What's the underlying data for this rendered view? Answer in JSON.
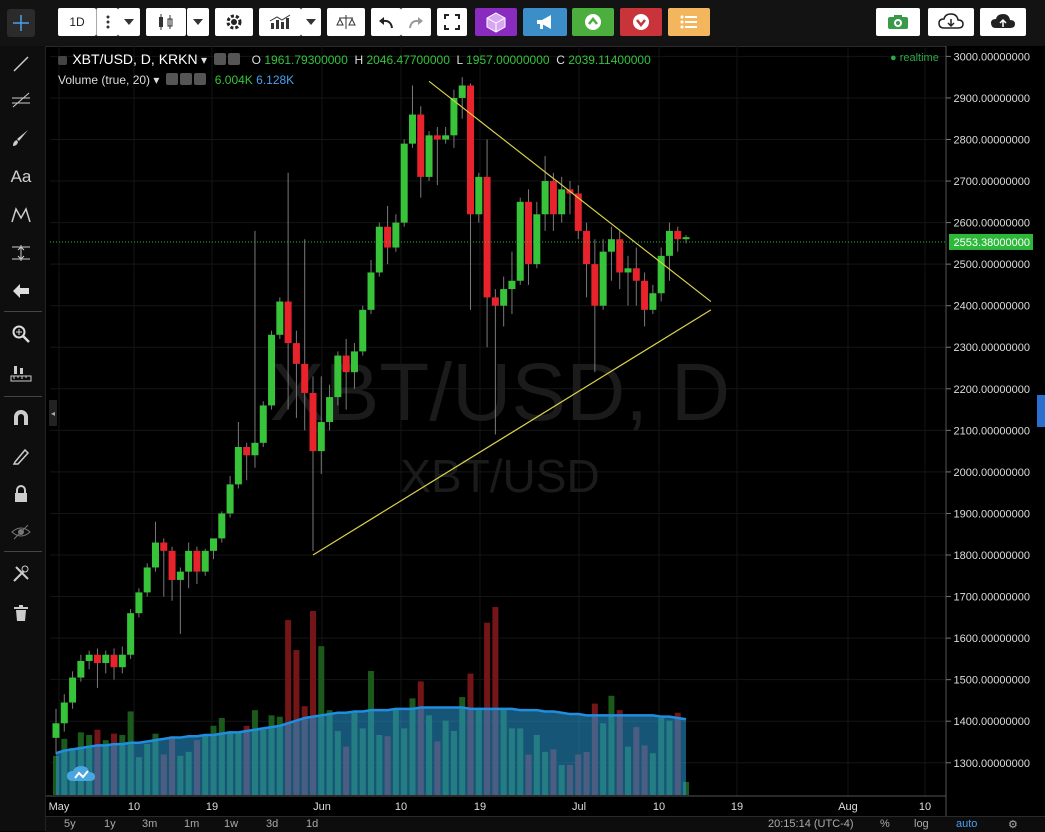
{
  "toolbar": {
    "interval": "1D",
    "icons": [
      "more-icon",
      "chevron-down-icon",
      "candles-icon",
      "chevron-down-icon",
      "gear-icon",
      "indicators-icon",
      "chevron-down-icon",
      "compare-icon",
      "undo-icon",
      "redo-icon",
      "fullscreen-icon",
      "cube-icon",
      "megaphone-icon",
      "up-arrow-icon",
      "down-arrow-icon",
      "list-icon",
      "camera-icon",
      "cloud-download-icon",
      "cloud-upload-icon"
    ],
    "colors": {
      "cube": "#8a2bc0",
      "megaphone": "#3b8ec8",
      "up": "#4cae3d",
      "down": "#c9343b",
      "list": "#f4b65c"
    }
  },
  "legend": {
    "symbol": "XBT/USD, D, KRKN",
    "o_label": "O",
    "o_value": "1961.79300000",
    "h_label": "H",
    "h_value": "2046.47700000",
    "l_label": "L",
    "l_value": "1957.00000000",
    "c_label": "C",
    "c_value": "2039.11400000",
    "volume_label": "Volume (true, 20)",
    "volume_value": "6.004K",
    "volume_ma": "6.128K",
    "realtime": "realtime"
  },
  "watermark": {
    "big": "XBT/USD, D",
    "small": "XBT/USD"
  },
  "bottom": {
    "ranges": [
      "5y",
      "1y",
      "3m",
      "1m",
      "1w",
      "3d",
      "1d"
    ],
    "time": "20:15:14 (UTC-4)",
    "percent": "%",
    "log": "log",
    "auto": "auto"
  },
  "chart_data": {
    "type": "candlestick",
    "ylim": [
      1220,
      3025
    ],
    "y_ticks": [
      "3000.00000000",
      "2900.00000000",
      "2800.00000000",
      "2700.00000000",
      "2600.00000000",
      "2500.00000000",
      "2400.00000000",
      "2300.00000000",
      "2200.00000000",
      "2100.00000000",
      "2000.00000000",
      "1900.00000000",
      "1800.00000000",
      "1700.00000000",
      "1600.00000000",
      "1500.00000000",
      "1400.00000000",
      "1300.00000000"
    ],
    "last_price": "2553.38000000",
    "x_labels": [
      "May",
      "10",
      "19",
      "Jun",
      "10",
      "19",
      "Jul",
      "10",
      "19",
      "Aug",
      "10"
    ],
    "colors": {
      "up": "#38c43a",
      "down": "#e8232b",
      "line": "#d8d04a",
      "volume_ma": "#1f8de0",
      "last": "#2db83a"
    },
    "candles": [
      [
        1360,
        1395,
        1320,
        1430
      ],
      [
        1395,
        1445,
        1375,
        1465
      ],
      [
        1445,
        1505,
        1430,
        1520
      ],
      [
        1505,
        1545,
        1495,
        1560
      ],
      [
        1545,
        1560,
        1525,
        1570
      ],
      [
        1560,
        1540,
        1480,
        1575
      ],
      [
        1540,
        1560,
        1515,
        1570
      ],
      [
        1560,
        1530,
        1500,
        1575
      ],
      [
        1530,
        1560,
        1515,
        1580
      ],
      [
        1560,
        1660,
        1550,
        1670
      ],
      [
        1660,
        1710,
        1650,
        1720
      ],
      [
        1710,
        1770,
        1700,
        1780
      ],
      [
        1770,
        1830,
        1760,
        1880
      ],
      [
        1830,
        1810,
        1700,
        1840
      ],
      [
        1810,
        1740,
        1690,
        1820
      ],
      [
        1740,
        1760,
        1610,
        1770
      ],
      [
        1760,
        1810,
        1720,
        1830
      ],
      [
        1810,
        1760,
        1730,
        1820
      ],
      [
        1760,
        1810,
        1750,
        1815
      ],
      [
        1810,
        1840,
        1790,
        1830
      ],
      [
        1840,
        1900,
        1830,
        1905
      ],
      [
        1900,
        1970,
        1890,
        1990
      ],
      [
        1970,
        2060,
        1960,
        2120
      ],
      [
        2060,
        2040,
        1980,
        2070
      ],
      [
        2040,
        2070,
        2010,
        2580
      ],
      [
        2070,
        2160,
        2060,
        2170
      ],
      [
        2160,
        2330,
        2150,
        2340
      ],
      [
        2330,
        2410,
        2320,
        2420
      ],
      [
        2410,
        2310,
        2150,
        2720
      ],
      [
        2310,
        2260,
        2130,
        2340
      ],
      [
        2260,
        2190,
        2100,
        2560
      ],
      [
        2190,
        2050,
        1810,
        2230
      ],
      [
        2050,
        2120,
        1995,
        2230
      ],
      [
        2120,
        2180,
        2100,
        2210
      ],
      [
        2180,
        2280,
        2160,
        2290
      ],
      [
        2280,
        2240,
        2150,
        2320
      ],
      [
        2240,
        2290,
        2200,
        2310
      ],
      [
        2290,
        2390,
        2280,
        2400
      ],
      [
        2390,
        2480,
        2380,
        2510
      ],
      [
        2480,
        2590,
        2470,
        2600
      ],
      [
        2590,
        2540,
        2500,
        2640
      ],
      [
        2540,
        2600,
        2530,
        2620
      ],
      [
        2600,
        2790,
        2590,
        2800
      ],
      [
        2790,
        2860,
        2780,
        2930
      ],
      [
        2860,
        2710,
        2660,
        2880
      ],
      [
        2710,
        2810,
        2700,
        2820
      ],
      [
        2810,
        2800,
        2690,
        2830
      ],
      [
        2800,
        2810,
        2790,
        2830
      ],
      [
        2810,
        2900,
        2780,
        2920
      ],
      [
        2900,
        2930,
        2850,
        2950
      ],
      [
        2930,
        2620,
        2390,
        2935
      ],
      [
        2620,
        2710,
        2600,
        2720
      ],
      [
        2710,
        2420,
        2300,
        2800
      ],
      [
        2420,
        2400,
        2090,
        2440
      ],
      [
        2400,
        2440,
        2350,
        2470
      ],
      [
        2440,
        2460,
        2380,
        2530
      ],
      [
        2460,
        2650,
        2450,
        2660
      ],
      [
        2650,
        2500,
        2450,
        2680
      ],
      [
        2500,
        2620,
        2490,
        2650
      ],
      [
        2620,
        2700,
        2580,
        2760
      ],
      [
        2700,
        2620,
        2580,
        2720
      ],
      [
        2620,
        2680,
        2600,
        2710
      ],
      [
        2680,
        2670,
        2620,
        2700
      ],
      [
        2670,
        2580,
        2560,
        2690
      ],
      [
        2580,
        2500,
        2420,
        2600
      ],
      [
        2500,
        2400,
        2240,
        2560
      ],
      [
        2400,
        2530,
        2390,
        2560
      ],
      [
        2530,
        2560,
        2460,
        2590
      ],
      [
        2560,
        2480,
        2440,
        2580
      ],
      [
        2480,
        2490,
        2400,
        2520
      ],
      [
        2490,
        2460,
        2400,
        2540
      ],
      [
        2460,
        2390,
        2350,
        2480
      ],
      [
        2390,
        2430,
        2380,
        2450
      ],
      [
        2430,
        2520,
        2410,
        2540
      ],
      [
        2520,
        2580,
        2460,
        2600
      ],
      [
        2580,
        2560,
        2530,
        2590
      ],
      [
        2560,
        2565,
        2550,
        2570
      ]
    ],
    "volume": [
      3.0,
      4.3,
      3.6,
      4.8,
      4.6,
      5.0,
      4.2,
      4.7,
      4.6,
      6.4,
      2.9,
      3.9,
      4.7,
      3.1,
      4.5,
      3.0,
      3.3,
      4.2,
      4.6,
      5.3,
      5.9,
      4.9,
      4.8,
      5.3,
      6.5,
      5.0,
      6.1,
      6.0,
      13.4,
      11.1,
      6.8,
      14.1,
      11.4,
      6.5,
      4.9,
      3.7,
      6.3,
      5.1,
      9.5,
      4.6,
      4.5,
      6.6,
      5.1,
      7.4,
      8.7,
      6.1,
      4.1,
      5.7,
      4.9,
      7.5,
      9.3,
      6.7,
      13.2,
      14.4,
      6.6,
      5.1,
      5.1,
      3.1,
      4.6,
      3.3,
      3.5,
      2.3,
      2.3,
      3.1,
      3.3,
      7.0,
      5.5,
      7.6,
      6.5,
      3.7,
      5.2,
      3.8,
      3.2,
      5.9,
      5.7,
      6.3,
      1.0
    ],
    "volume_ma": [
      3.2,
      3.4,
      3.5,
      3.6,
      3.7,
      3.8,
      3.8,
      3.9,
      3.9,
      4.0,
      4.0,
      4.1,
      4.2,
      4.3,
      4.4,
      4.4,
      4.5,
      4.5,
      4.6,
      4.6,
      4.7,
      4.8,
      4.8,
      4.9,
      5.0,
      5.1,
      5.2,
      5.3,
      5.5,
      5.7,
      5.9,
      6.0,
      6.1,
      6.2,
      6.3,
      6.3,
      6.4,
      6.4,
      6.5,
      6.5,
      6.5,
      6.6,
      6.6,
      6.6,
      6.7,
      6.7,
      6.7,
      6.7,
      6.7,
      6.7,
      6.6,
      6.6,
      6.6,
      6.6,
      6.6,
      6.6,
      6.5,
      6.5,
      6.5,
      6.4,
      6.4,
      6.3,
      6.2,
      6.2,
      6.1,
      6.1,
      6.1,
      6.1,
      6.1,
      6.1,
      6.1,
      6.1,
      6.1,
      6.0,
      6.0,
      5.9,
      5.8
    ],
    "trendlines": [
      {
        "from": [
          31,
          1800
        ],
        "to": [
          79,
          2390
        ]
      },
      {
        "from": [
          45,
          2940
        ],
        "to": [
          79,
          2410
        ]
      }
    ]
  }
}
